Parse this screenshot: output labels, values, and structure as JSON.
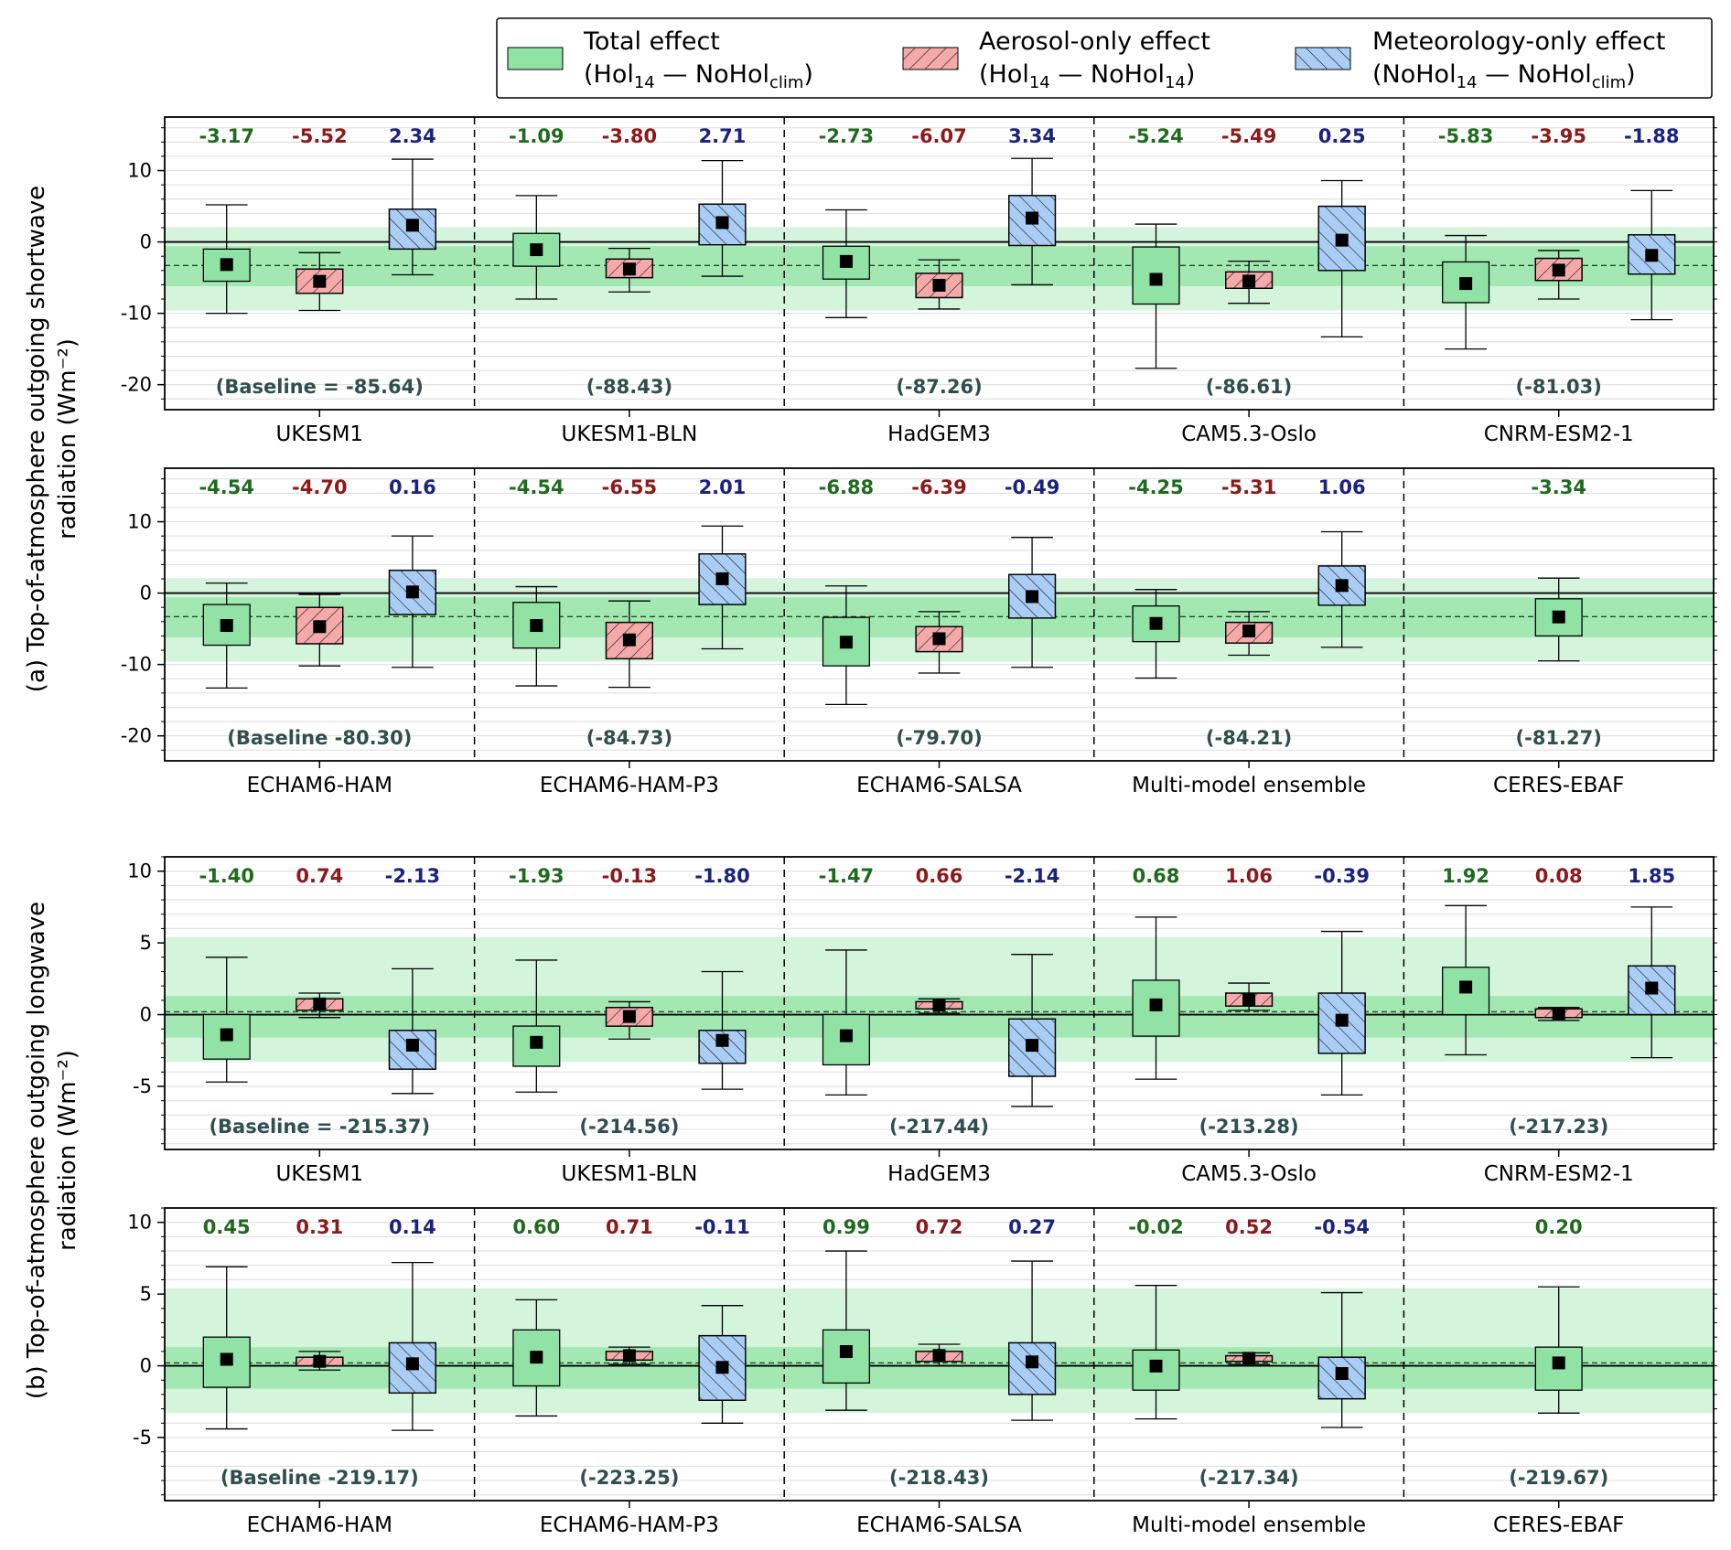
{
  "legend": {
    "items": [
      {
        "key": "total",
        "line1": "Total effect",
        "line2": "(Hol14 — NoHolclim)",
        "sub_a": "14",
        "sub_b": "clim",
        "fill": "#90e3a4",
        "hatch": "none"
      },
      {
        "key": "aerosol",
        "line1": "Aerosol-only effect",
        "line2": "(Hol14 — NoHol14)",
        "sub_a": "14",
        "sub_b": "14",
        "fill": "#f5a9a9",
        "hatch": "forward"
      },
      {
        "key": "met",
        "line1": "Meteorology-only effect",
        "line2": "(NoHol14 — NoHolclim)",
        "sub_a": "14",
        "sub_b": "clim",
        "fill": "#a9cdf5",
        "hatch": "back"
      }
    ]
  },
  "colors": {
    "total_label": "#1e6b1e",
    "aerosol_label": "#8b1a1a",
    "met_label": "#1a237e",
    "baseline_label": "#2f4f4f",
    "band_inner": "#a3e8b3",
    "band_outer": "#d4f4dc"
  },
  "chart_data": [
    {
      "type": "box",
      "panel": "a-top",
      "ylim": [
        -23.5,
        17.5
      ],
      "yticks": [
        10,
        0,
        -10,
        -20
      ],
      "band_inner": [
        -6.2,
        -0.6
      ],
      "band_outer": [
        -9.6,
        2.0
      ],
      "mean_line": -3.3,
      "models": [
        {
          "name": "UKESM1",
          "baseline": "(Baseline = -85.64)",
          "total": {
            "label": "-3.17",
            "median": -3.17,
            "q1": -5.5,
            "q3": -1.0,
            "wlo": -10.0,
            "whi": 5.2
          },
          "aerosol": {
            "label": "-5.52",
            "median": -5.52,
            "q1": -7.2,
            "q3": -3.8,
            "wlo": -9.6,
            "whi": -1.5
          },
          "met": {
            "label": "2.34",
            "median": 2.34,
            "q1": -1.0,
            "q3": 4.6,
            "wlo": -4.6,
            "whi": 11.6
          }
        },
        {
          "name": "UKESM1-BLN",
          "baseline": "(-88.43)",
          "total": {
            "label": "-1.09",
            "median": -1.09,
            "q1": -3.4,
            "q3": 1.2,
            "wlo": -8.0,
            "whi": 6.5
          },
          "aerosol": {
            "label": "-3.80",
            "median": -3.8,
            "q1": -5.0,
            "q3": -2.4,
            "wlo": -7.0,
            "whi": -0.9
          },
          "met": {
            "label": "2.71",
            "median": 2.71,
            "q1": -0.4,
            "q3": 5.3,
            "wlo": -4.8,
            "whi": 11.4
          }
        },
        {
          "name": "HadGEM3",
          "baseline": "(-87.26)",
          "total": {
            "label": "-2.73",
            "median": -2.73,
            "q1": -5.2,
            "q3": -0.6,
            "wlo": -10.6,
            "whi": 4.5
          },
          "aerosol": {
            "label": "-6.07",
            "median": -6.07,
            "q1": -7.8,
            "q3": -4.4,
            "wlo": -9.4,
            "whi": -2.5
          },
          "met": {
            "label": "3.34",
            "median": 3.34,
            "q1": -0.5,
            "q3": 6.5,
            "wlo": -6.0,
            "whi": 11.7
          }
        },
        {
          "name": "CAM5.3-Oslo",
          "baseline": "(-86.61)",
          "total": {
            "label": "-5.24",
            "median": -5.24,
            "q1": -8.7,
            "q3": -0.7,
            "wlo": -17.7,
            "whi": 2.5
          },
          "aerosol": {
            "label": "-5.49",
            "median": -5.49,
            "q1": -6.5,
            "q3": -4.2,
            "wlo": -8.6,
            "whi": -2.7
          },
          "met": {
            "label": "0.25",
            "median": 0.25,
            "q1": -4.0,
            "q3": 5.0,
            "wlo": -13.3,
            "whi": 8.6
          }
        },
        {
          "name": "CNRM-ESM2-1",
          "baseline": "(-81.03)",
          "total": {
            "label": "-5.83",
            "median": -5.83,
            "q1": -8.5,
            "q3": -2.8,
            "wlo": -15.0,
            "whi": 0.9
          },
          "aerosol": {
            "label": "-3.95",
            "median": -3.95,
            "q1": -5.4,
            "q3": -2.3,
            "wlo": -8.0,
            "whi": -1.2
          },
          "met": {
            "label": "-1.88",
            "median": -1.88,
            "q1": -4.5,
            "q3": 1.0,
            "wlo": -10.9,
            "whi": 7.2
          }
        }
      ]
    },
    {
      "type": "box",
      "panel": "a-bottom",
      "ylim": [
        -23.5,
        17.5
      ],
      "yticks": [
        10,
        0,
        -10,
        -20
      ],
      "band_inner": [
        -6.2,
        -0.6
      ],
      "band_outer": [
        -9.6,
        2.0
      ],
      "mean_line": -3.3,
      "models": [
        {
          "name": "ECHAM6-HAM",
          "baseline": "(Baseline -80.30)",
          "total": {
            "label": "-4.54",
            "median": -4.54,
            "q1": -7.3,
            "q3": -1.6,
            "wlo": -13.3,
            "whi": 1.4
          },
          "aerosol": {
            "label": "-4.70",
            "median": -4.7,
            "q1": -7.1,
            "q3": -2.0,
            "wlo": -10.2,
            "whi": -0.2
          },
          "met": {
            "label": "0.16",
            "median": 0.16,
            "q1": -3.0,
            "q3": 3.2,
            "wlo": -10.4,
            "whi": 8.0
          }
        },
        {
          "name": "ECHAM6-HAM-P3",
          "baseline": "(-84.73)",
          "total": {
            "label": "-4.54",
            "median": -4.54,
            "q1": -7.7,
            "q3": -1.3,
            "wlo": -13.0,
            "whi": 0.9
          },
          "aerosol": {
            "label": "-6.55",
            "median": -6.55,
            "q1": -9.2,
            "q3": -4.1,
            "wlo": -13.2,
            "whi": -1.1
          },
          "met": {
            "label": "2.01",
            "median": 2.01,
            "q1": -1.6,
            "q3": 5.5,
            "wlo": -7.8,
            "whi": 9.4
          }
        },
        {
          "name": "ECHAM6-SALSA",
          "baseline": "(-79.70)",
          "total": {
            "label": "-6.88",
            "median": -6.88,
            "q1": -10.2,
            "q3": -3.4,
            "wlo": -15.6,
            "whi": 1.0
          },
          "aerosol": {
            "label": "-6.39",
            "median": -6.39,
            "q1": -8.2,
            "q3": -4.7,
            "wlo": -11.2,
            "whi": -2.6
          },
          "met": {
            "label": "-0.49",
            "median": -0.49,
            "q1": -3.5,
            "q3": 2.6,
            "wlo": -10.4,
            "whi": 7.8
          }
        },
        {
          "name": "Multi-model ensemble",
          "baseline": "(-84.21)",
          "total": {
            "label": "-4.25",
            "median": -4.25,
            "q1": -6.8,
            "q3": -1.8,
            "wlo": -11.9,
            "whi": 0.5
          },
          "aerosol": {
            "label": "-5.31",
            "median": -5.31,
            "q1": -7.0,
            "q3": -4.1,
            "wlo": -8.7,
            "whi": -2.6
          },
          "met": {
            "label": "1.06",
            "median": 1.06,
            "q1": -1.7,
            "q3": 3.8,
            "wlo": -7.6,
            "whi": 8.6
          }
        },
        {
          "name": "CERES-EBAF",
          "baseline": "(-81.27)",
          "total": {
            "label": "-3.34",
            "median": -3.34,
            "q1": -6.0,
            "q3": -0.8,
            "wlo": -9.5,
            "whi": 2.1
          },
          "aerosol": null,
          "met": null
        }
      ]
    },
    {
      "type": "box",
      "panel": "b-top",
      "ylim": [
        -9.4,
        11.0
      ],
      "yticks": [
        10,
        5,
        0,
        -5
      ],
      "band_inner": [
        -1.6,
        1.3
      ],
      "band_outer": [
        -3.3,
        5.4
      ],
      "mean_line": 0.2,
      "models": [
        {
          "name": "UKESM1",
          "baseline": "(Baseline = -215.37)",
          "total": {
            "label": "-1.40",
            "median": -1.4,
            "q1": -3.1,
            "q3": 0.0,
            "wlo": -4.7,
            "whi": 4.0
          },
          "aerosol": {
            "label": "0.74",
            "median": 0.74,
            "q1": 0.3,
            "q3": 1.1,
            "wlo": -0.2,
            "whi": 1.5
          },
          "met": {
            "label": "-2.13",
            "median": -2.13,
            "q1": -3.8,
            "q3": -1.1,
            "wlo": -5.5,
            "whi": 3.2
          }
        },
        {
          "name": "UKESM1-BLN",
          "baseline": "(-214.56)",
          "total": {
            "label": "-1.93",
            "median": -1.93,
            "q1": -3.6,
            "q3": -0.8,
            "wlo": -5.4,
            "whi": 3.8
          },
          "aerosol": {
            "label": "-0.13",
            "median": -0.13,
            "q1": -0.8,
            "q3": 0.5,
            "wlo": -1.7,
            "whi": 0.9
          },
          "met": {
            "label": "-1.80",
            "median": -1.8,
            "q1": -3.4,
            "q3": -1.1,
            "wlo": -5.2,
            "whi": 3.0
          }
        },
        {
          "name": "HadGEM3",
          "baseline": "(-217.44)",
          "total": {
            "label": "-1.47",
            "median": -1.47,
            "q1": -3.5,
            "q3": 0.0,
            "wlo": -5.6,
            "whi": 4.5
          },
          "aerosol": {
            "label": "0.66",
            "median": 0.66,
            "q1": 0.4,
            "q3": 0.9,
            "wlo": 0.1,
            "whi": 1.1
          },
          "met": {
            "label": "-2.14",
            "median": -2.14,
            "q1": -4.3,
            "q3": -0.3,
            "wlo": -6.4,
            "whi": 4.2
          }
        },
        {
          "name": "CAM5.3-Oslo",
          "baseline": "(-213.28)",
          "total": {
            "label": "0.68",
            "median": 0.68,
            "q1": -1.5,
            "q3": 2.4,
            "wlo": -4.5,
            "whi": 6.8
          }
        },
        {
          "name": "CNRM-ESM2-1",
          "baseline": "(-217.23)",
          "total": {
            "label": "1.92",
            "median": 1.92,
            "q1": 0.0,
            "q3": 3.3,
            "wlo": -2.8,
            "whi": 7.6
          },
          "aerosol": {
            "label": "0.08",
            "median": 0.08,
            "q1": -0.2,
            "q3": 0.4,
            "wlo": -0.4,
            "whi": 0.5
          },
          "met": {
            "label": "1.85",
            "median": 1.85,
            "q1": 0.0,
            "q3": 3.4,
            "wlo": -3.0,
            "whi": 7.5
          }
        }
      ]
    },
    {
      "type": "box",
      "panel": "b-bottom",
      "ylim": [
        -9.4,
        11.0
      ],
      "yticks": [
        10,
        5,
        0,
        -5
      ],
      "band_inner": [
        -1.6,
        1.3
      ],
      "band_outer": [
        -3.3,
        5.4
      ],
      "mean_line": 0.2,
      "models": [
        {
          "name": "ECHAM6-HAM",
          "baseline": "(Baseline -219.17)",
          "total": {
            "label": "0.45",
            "median": 0.45,
            "q1": -1.5,
            "q3": 2.0,
            "wlo": -4.4,
            "whi": 6.9
          },
          "aerosol": {
            "label": "0.31",
            "median": 0.31,
            "q1": 0.0,
            "q3": 0.6,
            "wlo": -0.3,
            "whi": 1.0
          },
          "met": {
            "label": "0.14",
            "median": 0.14,
            "q1": -1.9,
            "q3": 1.6,
            "wlo": -4.5,
            "whi": 7.2
          }
        },
        {
          "name": "ECHAM6-HAM-P3",
          "baseline": "(-223.25)",
          "total": {
            "label": "0.60",
            "median": 0.6,
            "q1": -1.4,
            "q3": 2.5,
            "wlo": -3.5,
            "whi": 4.6
          },
          "aerosol": {
            "label": "0.71",
            "median": 0.71,
            "q1": 0.4,
            "q3": 1.0,
            "wlo": 0.1,
            "whi": 1.3
          },
          "met": {
            "label": "-0.11",
            "median": -0.11,
            "q1": -2.4,
            "q3": 2.1,
            "wlo": -4.0,
            "whi": 4.2
          }
        },
        {
          "name": "ECHAM6-SALSA",
          "baseline": "(-218.43)",
          "total": {
            "label": "0.99",
            "median": 0.99,
            "q1": -1.2,
            "q3": 2.5,
            "wlo": -3.1,
            "whi": 8.0
          },
          "aerosol": {
            "label": "0.72",
            "median": 0.72,
            "q1": 0.3,
            "q3": 1.0,
            "wlo": 0.0,
            "whi": 1.5
          },
          "met": {
            "label": "0.27",
            "median": 0.27,
            "q1": -2.0,
            "q3": 1.6,
            "wlo": -3.8,
            "whi": 7.3
          }
        },
        {
          "name": "Multi-model ensemble",
          "baseline": "(-217.34)",
          "total": {
            "label": "-0.02",
            "median": -0.02,
            "q1": -1.7,
            "q3": 1.1,
            "wlo": -3.7,
            "whi": 5.6
          },
          "aerosol": {
            "label": "0.52",
            "median": 0.52,
            "q1": 0.3,
            "q3": 0.7,
            "wlo": 0.1,
            "whi": 0.9
          },
          "met": {
            "label": "-0.54",
            "median": -0.54,
            "q1": -2.3,
            "q3": 0.6,
            "wlo": -4.3,
            "whi": 5.1
          }
        },
        {
          "name": "CERES-EBAF",
          "baseline": "(-219.67)",
          "total": {
            "label": "0.20",
            "median": 0.2,
            "q1": -1.7,
            "q3": 1.3,
            "wlo": -3.3,
            "whi": 5.5
          },
          "aerosol": null,
          "met": null
        }
      ]
    }
  ],
  "aerosol_cam": {
    "label": "1.06",
    "median": 1.06,
    "q1": 0.6,
    "q3": 1.5,
    "wlo": 0.3,
    "whi": 2.2
  },
  "met_cam": {
    "label": "-0.39",
    "median": -0.39,
    "q1": -2.7,
    "q3": 1.5,
    "wlo": -5.6,
    "whi": 5.8
  },
  "ylabels": {
    "a_line1": "(a) Top-of-atmosphere outgoing shortwave",
    "a_line2": "radiation (Wm⁻²)",
    "b_line1": "(b) Top-of-atmosphere outgoing longwave",
    "b_line2": "radiation (Wm⁻²)"
  }
}
